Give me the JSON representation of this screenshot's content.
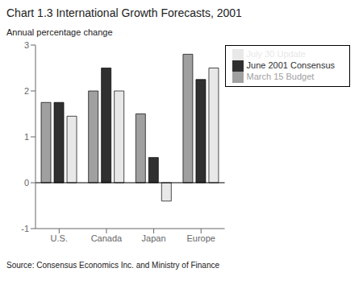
{
  "chart_data": {
    "type": "bar",
    "title": "Chart 1.3 International Growth Forecasts, 2001",
    "ylabel": "Annual percentage change",
    "annotations": [
      "Source: Consensus Economics Inc. and Ministry of Finance"
    ],
    "categories": [
      "U.S.",
      "Canada",
      "Japan",
      "Europe"
    ],
    "series": [
      {
        "name": "March 15 Budget",
        "color": "#a0a0a0",
        "values": [
          1.75,
          2.0,
          1.5,
          2.8
        ]
      },
      {
        "name": "June 2001 Consensus",
        "color": "#303030",
        "values": [
          1.75,
          2.5,
          0.55,
          2.25
        ]
      },
      {
        "name": "July 30 Update",
        "color": "#e8e8e8",
        "values": [
          1.45,
          2.0,
          -0.4,
          2.5
        ]
      }
    ],
    "ylim": [
      -1,
      3
    ],
    "yticks": [
      -1,
      0,
      1,
      2,
      3
    ],
    "grid": false,
    "legend": "right"
  }
}
